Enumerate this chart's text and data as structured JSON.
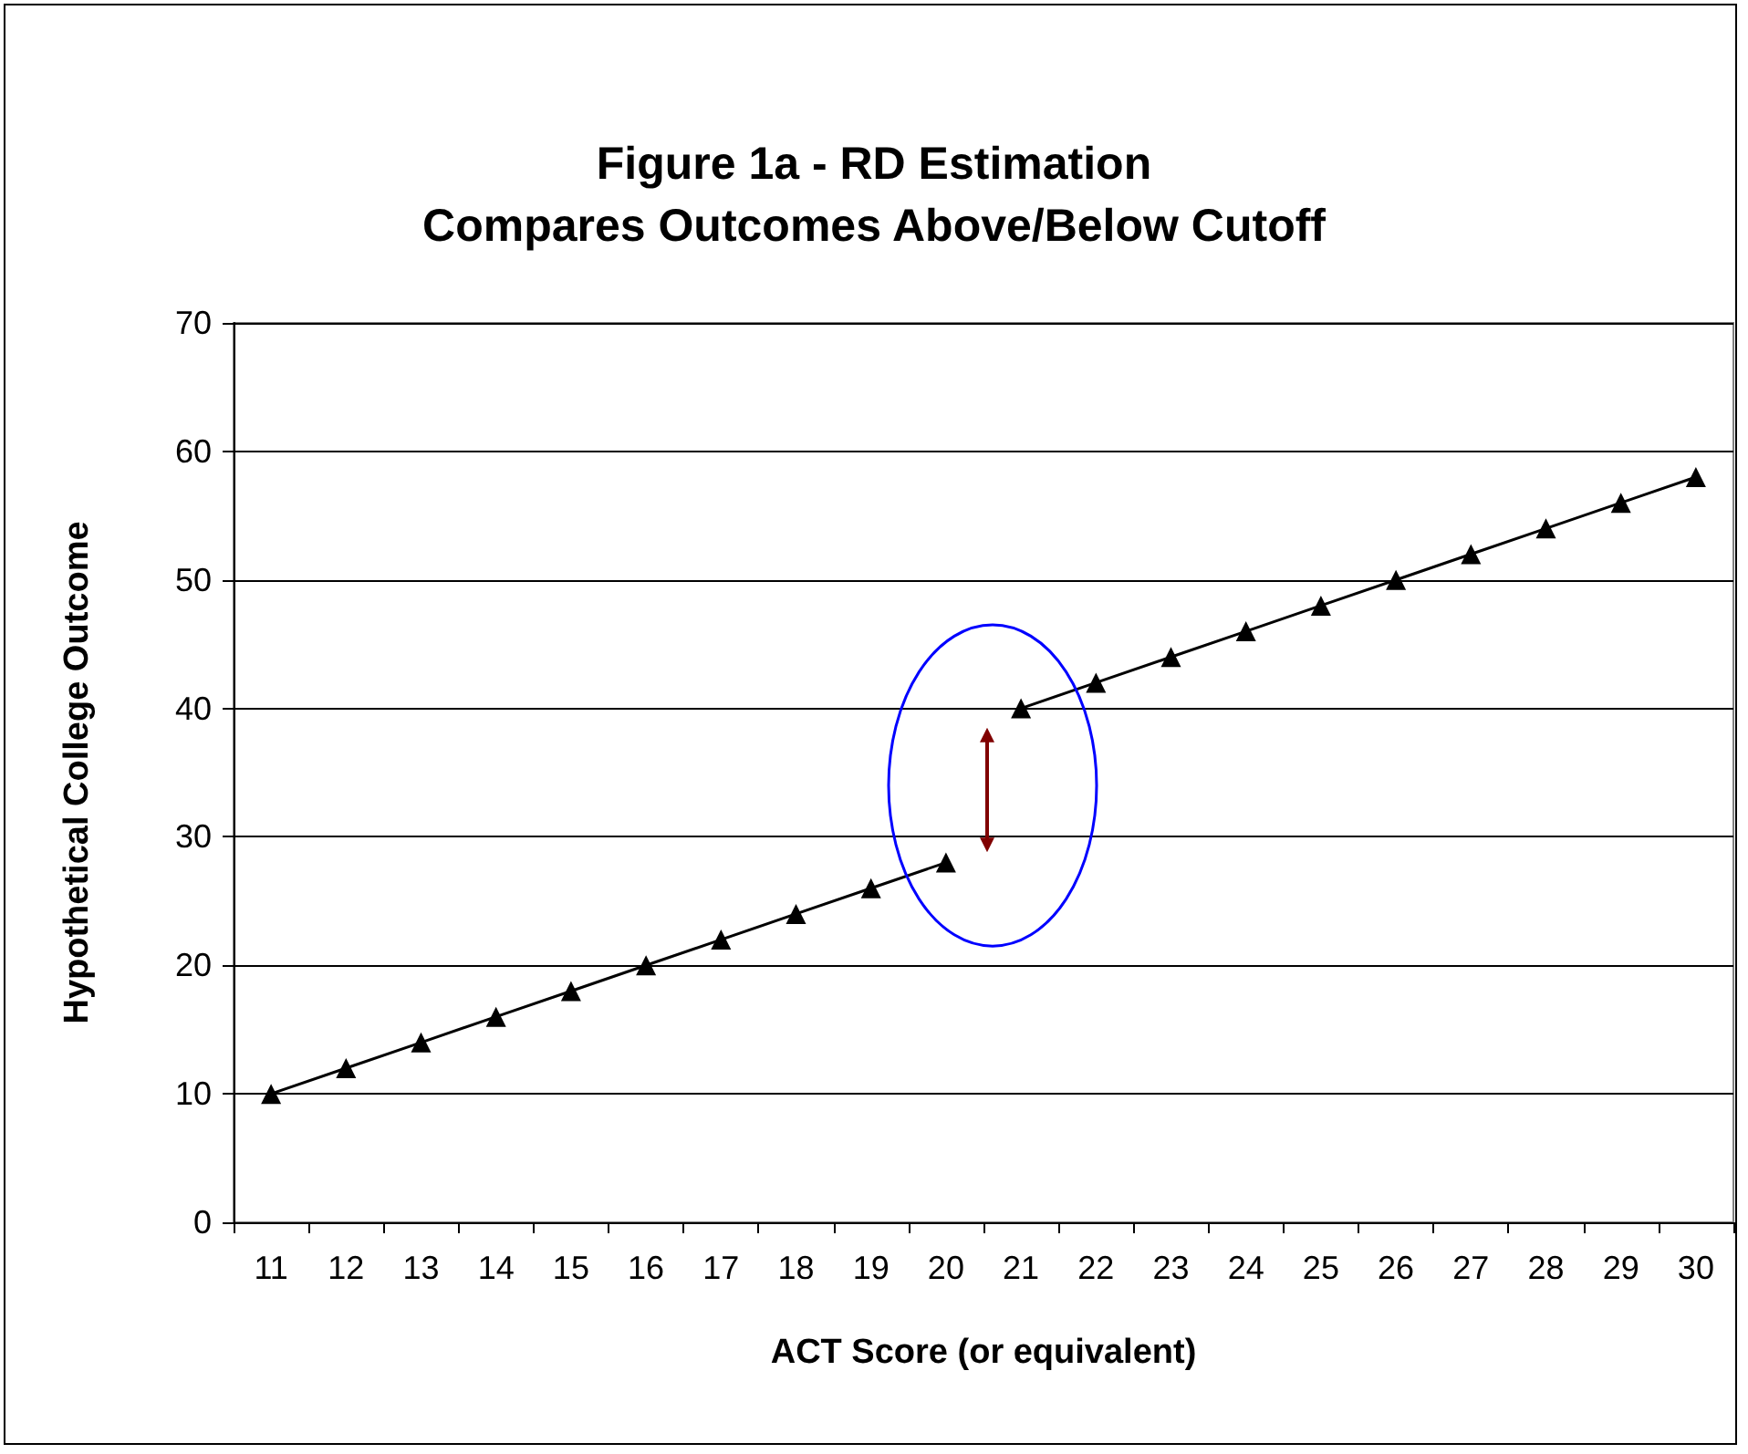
{
  "chart_data": {
    "type": "line",
    "title": "Figure 1a - RD Estimation\nCompares Outcomes Above/Below Cutoff",
    "xlabel": "ACT Score (or equivalent)",
    "ylabel": "Hypothetical College Outcome",
    "categories": [
      "11",
      "12",
      "13",
      "14",
      "15",
      "16",
      "17",
      "18",
      "19",
      "20",
      "21",
      "22",
      "23",
      "24",
      "25",
      "26",
      "27",
      "28",
      "29",
      "30"
    ],
    "series": [
      {
        "color": "#000000",
        "values": [
          10,
          12,
          14,
          16,
          18,
          20,
          22,
          24,
          26,
          28,
          null,
          null,
          null,
          null,
          null,
          null,
          null,
          null,
          null,
          null
        ]
      },
      {
        "color": "#000000",
        "values": [
          null,
          null,
          null,
          null,
          null,
          null,
          null,
          null,
          null,
          null,
          40,
          42,
          44,
          46,
          48,
          50,
          52,
          54,
          56,
          58
        ]
      }
    ],
    "ylim": [
      0,
      70
    ],
    "yticks": [
      0,
      10,
      20,
      30,
      40,
      50,
      60,
      70
    ],
    "grid": "y",
    "marker": "triangle",
    "line_style": "solid"
  }
}
